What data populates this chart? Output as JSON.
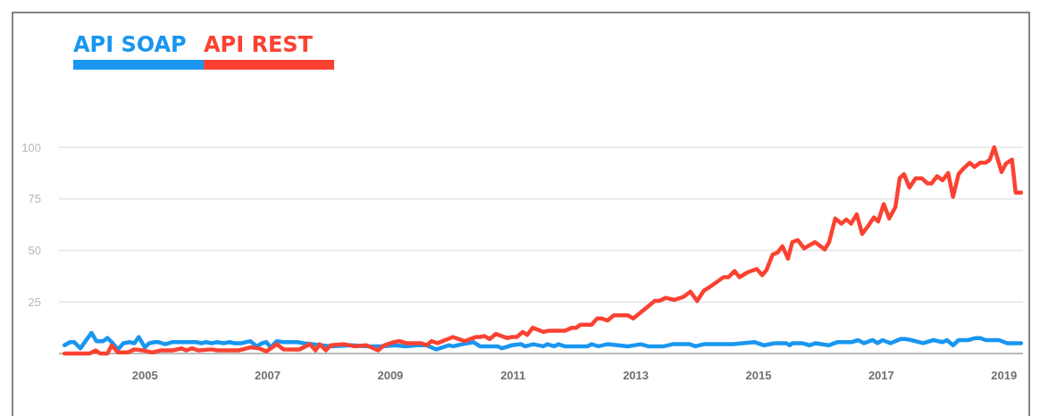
{
  "chart_data": {
    "type": "line",
    "xlim": [
      2003.6,
      2019.31
    ],
    "ylim": [
      0,
      100
    ],
    "xticks": [
      2005,
      2007,
      2009,
      2011,
      2013,
      2015,
      2017,
      2019
    ],
    "yticks": [
      {
        "value": 0,
        "label": null
      },
      25,
      50,
      75,
      100
    ],
    "grid": "y",
    "legend": "top left",
    "line_style": "solid",
    "marker": "none",
    "series": [
      {
        "name": "API SOAP",
        "color": "#1996f0",
        "x": [
          2003.69,
          2003.78,
          2003.85,
          2003.95,
          2004.02,
          2004.13,
          2004.21,
          2004.32,
          2004.39,
          2004.46,
          2004.56,
          2004.65,
          2004.75,
          2004.83,
          2004.9,
          2005.0,
          2005.07,
          2005.16,
          2005.23,
          2005.33,
          2005.44,
          2005.84,
          2005.92,
          2005.99,
          2006.09,
          2006.18,
          2006.28,
          2006.38,
          2006.46,
          2006.57,
          2006.72,
          2006.82,
          2006.91,
          2006.98,
          2007.05,
          2007.15,
          2007.26,
          2007.49,
          2007.59,
          2008.03,
          2008.36,
          2008.65,
          2008.86,
          2009.09,
          2009.24,
          2009.44,
          2009.59,
          2009.75,
          2009.95,
          2010.02,
          2010.17,
          2010.36,
          2010.46,
          2010.75,
          2010.82,
          2010.98,
          2011.13,
          2011.2,
          2011.33,
          2011.49,
          2011.56,
          2011.67,
          2011.74,
          2011.84,
          2012.21,
          2012.28,
          2012.39,
          2012.54,
          2012.87,
          2013.08,
          2013.2,
          2013.46,
          2013.6,
          2013.88,
          2013.97,
          2014.11,
          2014.58,
          2014.94,
          2015.09,
          2015.26,
          2015.45,
          2015.51,
          2015.55,
          2015.71,
          2015.83,
          2015.93,
          2016.14,
          2016.28,
          2016.51,
          2016.62,
          2016.72,
          2016.86,
          2016.94,
          2017.02,
          2017.15,
          2017.31,
          2017.39,
          2017.49,
          2017.68,
          2017.85,
          2018.0,
          2018.07,
          2018.17,
          2018.26,
          2018.41,
          2018.54,
          2018.61,
          2018.7,
          2018.92,
          2019.05,
          2019.28
        ],
        "values": [
          4,
          5.5,
          5.5,
          2.5,
          5.5,
          10,
          6,
          6,
          7.5,
          5.5,
          2,
          5,
          5.5,
          5,
          8,
          3,
          5,
          5.5,
          5.5,
          4.5,
          5.5,
          5.5,
          5,
          5.5,
          5,
          5.5,
          5,
          5.5,
          5,
          5,
          6,
          3.5,
          5,
          5.5,
          3,
          6,
          5.5,
          5.5,
          5,
          3.5,
          4,
          3.5,
          3.5,
          4,
          3.5,
          4,
          4,
          2,
          4,
          3.5,
          4.5,
          5.5,
          3.5,
          3.5,
          2.5,
          4,
          4.5,
          3.5,
          4.5,
          3.5,
          4.5,
          3.5,
          4.5,
          3.5,
          3.5,
          4.5,
          3.5,
          4.5,
          3.5,
          4.5,
          3.5,
          3.5,
          4.5,
          4.5,
          3.5,
          4.5,
          4.5,
          5.5,
          4,
          5,
          5,
          4,
          5,
          5,
          4,
          5,
          4,
          5.5,
          5.5,
          6.5,
          5,
          6.5,
          5,
          6.5,
          5,
          7,
          7,
          6.5,
          5,
          6.5,
          5.5,
          6.5,
          4,
          6.5,
          6.5,
          7.5,
          7.5,
          6.5,
          6.5,
          5,
          5
        ]
      },
      {
        "name": "API REST",
        "color": "#fb4232",
        "x": [
          2003.69,
          2004.1,
          2004.2,
          2004.27,
          2004.39,
          2004.46,
          2004.56,
          2004.72,
          2004.83,
          2004.97,
          2005.12,
          2005.26,
          2005.45,
          2005.6,
          2005.67,
          2005.77,
          2005.87,
          2006.09,
          2006.18,
          2006.53,
          2006.72,
          2006.86,
          2006.98,
          2007.15,
          2007.26,
          2007.52,
          2007.69,
          2007.78,
          2007.85,
          2007.95,
          2008.03,
          2008.25,
          2008.42,
          2008.61,
          2008.8,
          2008.9,
          2009.05,
          2009.15,
          2009.26,
          2009.51,
          2009.59,
          2009.67,
          2009.77,
          2010.02,
          2010.21,
          2010.39,
          2010.46,
          2010.53,
          2010.62,
          2010.72,
          2010.9,
          2010.98,
          2011.06,
          2011.16,
          2011.23,
          2011.32,
          2011.49,
          2011.59,
          2011.84,
          2011.96,
          2012.03,
          2012.1,
          2012.28,
          2012.37,
          2012.44,
          2012.54,
          2012.64,
          2012.87,
          2012.96,
          2013.31,
          2013.38,
          2013.49,
          2013.63,
          2013.78,
          2013.89,
          2014.0,
          2014.11,
          2014.24,
          2014.43,
          2014.51,
          2014.61,
          2014.69,
          2014.83,
          2014.97,
          2015.06,
          2015.13,
          2015.23,
          2015.31,
          2015.39,
          2015.48,
          2015.55,
          2015.64,
          2015.74,
          2015.92,
          2016.08,
          2016.15,
          2016.25,
          2016.35,
          2016.43,
          2016.51,
          2016.6,
          2016.69,
          2016.79,
          2016.88,
          2016.95,
          2017.04,
          2017.13,
          2017.23,
          2017.3,
          2017.37,
          2017.46,
          2017.56,
          2017.66,
          2017.75,
          2017.82,
          2017.91,
          2018.0,
          2018.09,
          2018.17,
          2018.26,
          2018.35,
          2018.44,
          2018.52,
          2018.61,
          2018.7,
          2018.77,
          2018.84,
          2018.96,
          2019.03,
          2019.13,
          2019.19,
          2019.28
        ],
        "values": [
          0,
          0,
          1.5,
          0,
          0,
          4,
          0.5,
          0.5,
          2,
          1.5,
          0.5,
          1.5,
          1.5,
          2.5,
          1.5,
          2.5,
          1.5,
          2,
          1.5,
          1.5,
          3,
          2.5,
          1,
          4.5,
          2,
          2,
          4.5,
          1.5,
          4.5,
          1.5,
          4,
          4.5,
          3.5,
          4,
          1.5,
          4,
          5.5,
          6,
          5,
          5,
          4,
          6,
          5,
          8,
          6,
          8,
          8,
          8.5,
          7,
          9.5,
          7.5,
          8,
          8,
          10.5,
          9,
          12.5,
          10.5,
          11,
          11,
          12.5,
          12.5,
          14,
          14,
          17,
          17,
          16,
          18.5,
          18.5,
          17,
          25.5,
          25.5,
          27,
          26,
          27.5,
          30,
          25.5,
          30.5,
          33,
          37,
          37,
          40,
          37,
          39.5,
          41,
          38,
          40.5,
          48,
          49,
          52,
          46,
          54,
          55,
          51,
          54,
          50.5,
          54,
          65.5,
          63,
          65,
          63,
          67.5,
          58,
          62,
          66,
          64,
          72.5,
          65.5,
          71,
          85,
          87,
          80.5,
          85,
          85,
          82.5,
          82.5,
          86,
          84,
          87.5,
          76,
          87,
          90,
          92.5,
          90.5,
          92.5,
          92.5,
          94,
          100,
          88,
          92,
          94,
          78,
          78
        ]
      }
    ]
  }
}
